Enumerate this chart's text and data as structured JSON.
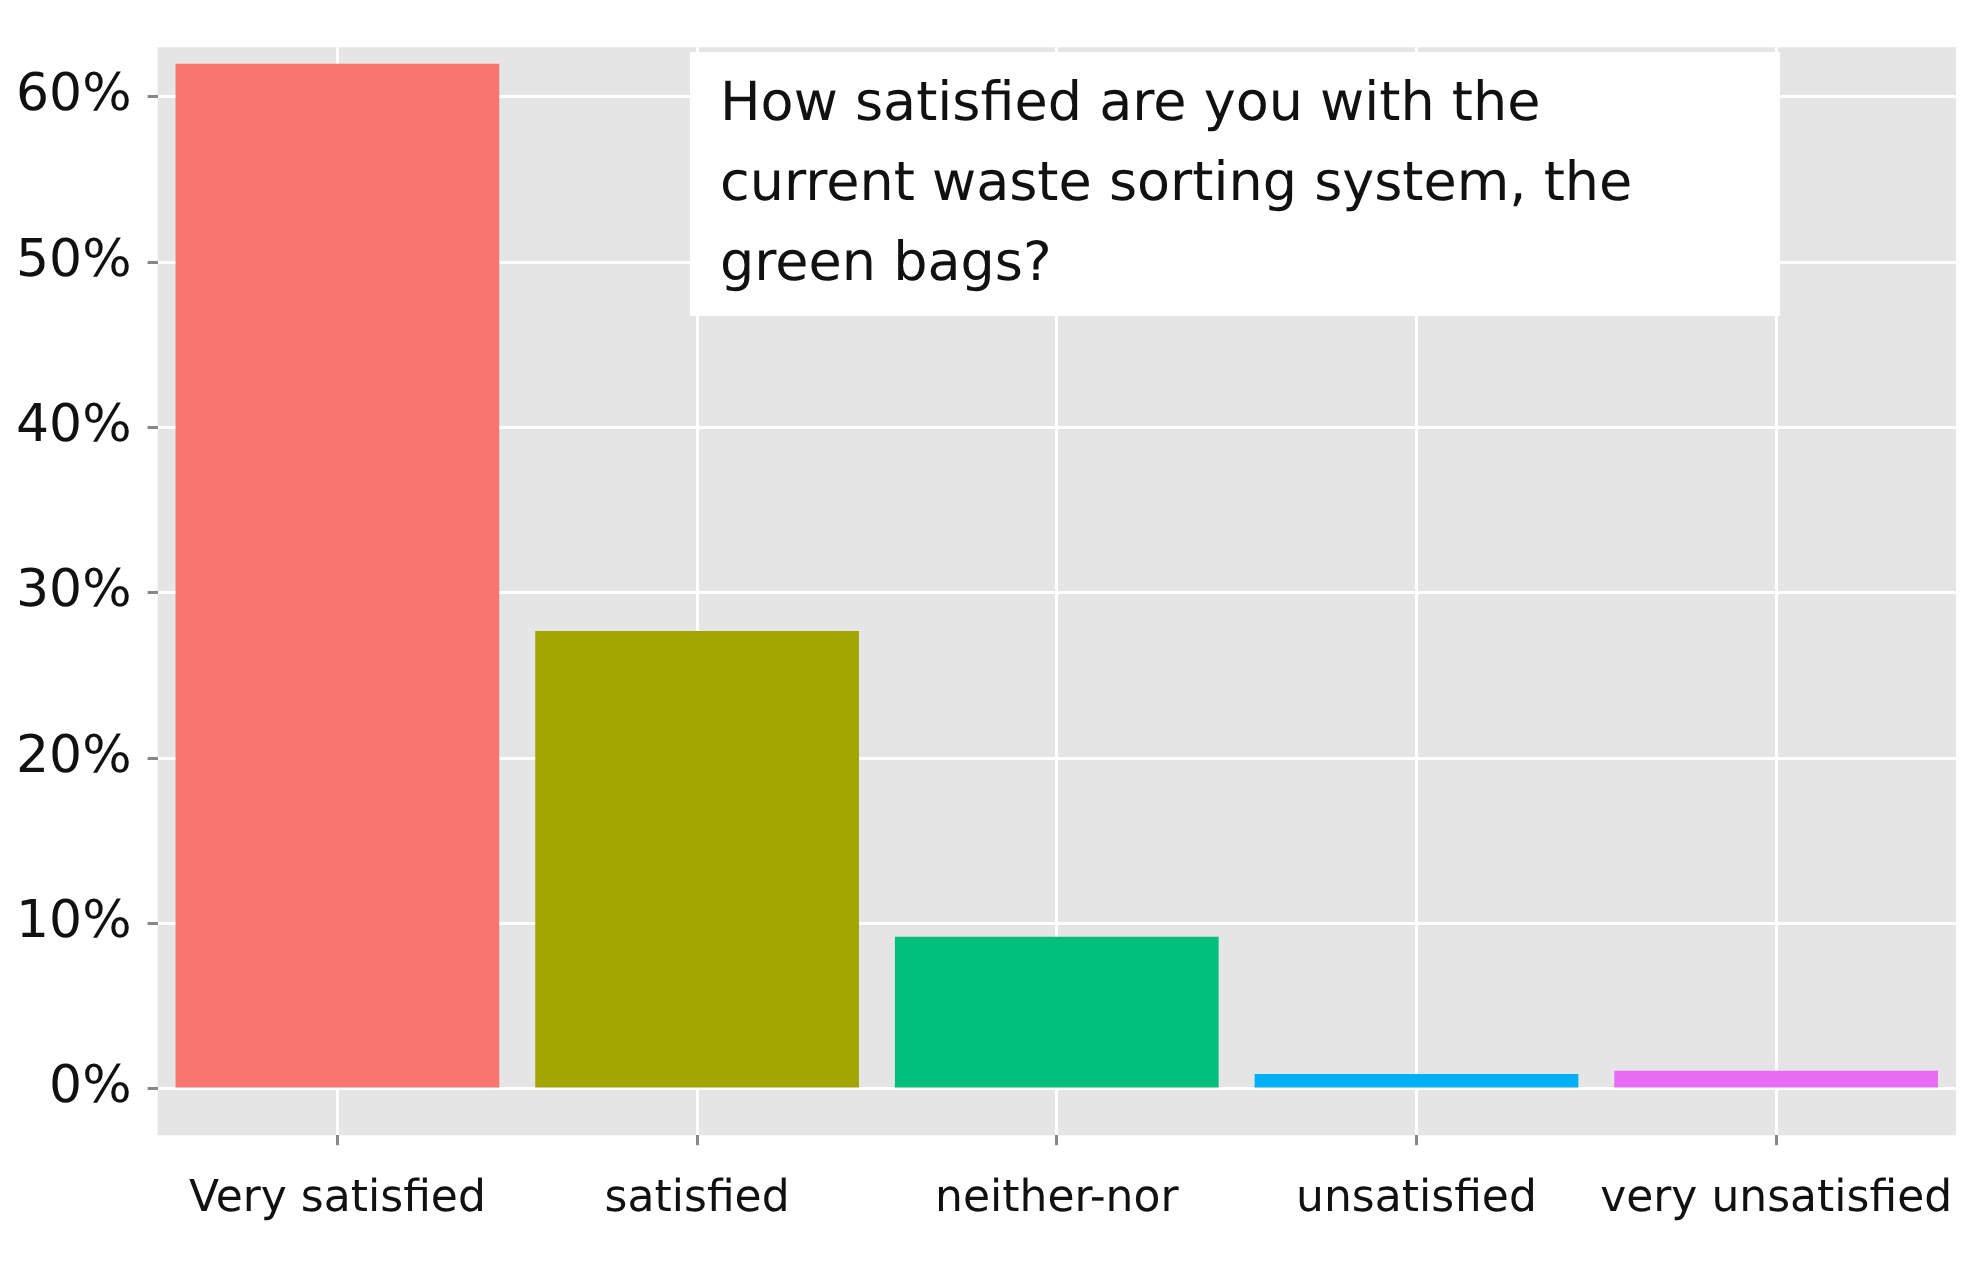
{
  "chart_data": {
    "type": "bar",
    "title": "How satisfied are you with the current waste sorting system, the green bags?",
    "categories": [
      "Very satisfied",
      "satisfied",
      "neither-nor",
      "unsatisfied",
      "very unsatisfied"
    ],
    "values": [
      62,
      27.7,
      9.2,
      0.9,
      1.1
    ],
    "colors": [
      "#f8766d",
      "#a3a500",
      "#00bf7d",
      "#00b0f6",
      "#e76bf3"
    ],
    "ylim": [
      -2.8,
      63
    ],
    "yticks": [
      {
        "value": 0,
        "label": "0%"
      },
      {
        "value": 10,
        "label": "10%"
      },
      {
        "value": 20,
        "label": "20%"
      },
      {
        "value": 30,
        "label": "30%"
      },
      {
        "value": 40,
        "label": "40%"
      },
      {
        "value": 50,
        "label": "50%"
      },
      {
        "value": 60,
        "label": "60%"
      }
    ],
    "grid": true,
    "legend": false
  }
}
